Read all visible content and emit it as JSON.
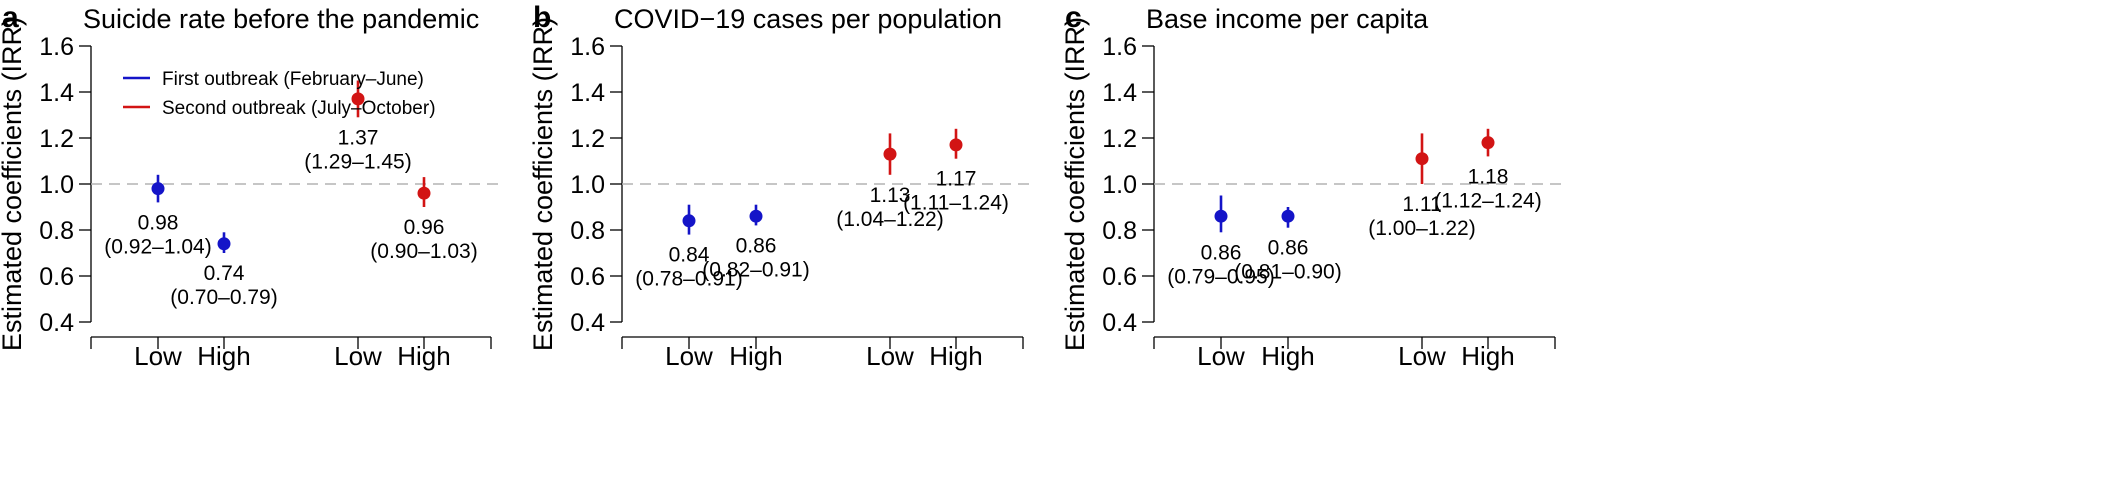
{
  "colors": {
    "first": "#1414c8",
    "second": "#d21414",
    "reference": "#b4b4b4",
    "axis": "#000000"
  },
  "legend": {
    "first": "First outbreak (February–June)",
    "second": "Second outbreak (July–October)"
  },
  "chart_data": [
    {
      "type": "scatter",
      "letter": "a",
      "title": "Suicide rate before the pandemic",
      "ylabel": "Estimated coefficients (IRR)",
      "ylim": [
        0.4,
        1.6
      ],
      "yticks": [
        "0.4",
        "0.6",
        "0.8",
        "1.0",
        "1.2",
        "1.4",
        "1.6"
      ],
      "reference_line": 1.0,
      "categories": [
        "Low",
        "High",
        "Low",
        "High"
      ],
      "points": [
        {
          "series": "first",
          "category": "Low",
          "value": 0.98,
          "lower": 0.92,
          "upper": 1.04,
          "value_label": "0.98",
          "ci_label": "(0.92–1.04)"
        },
        {
          "series": "first",
          "category": "High",
          "value": 0.74,
          "lower": 0.7,
          "upper": 0.79,
          "value_label": "0.74",
          "ci_label": "(0.70–0.79)"
        },
        {
          "series": "second",
          "category": "Low",
          "value": 1.37,
          "lower": 1.29,
          "upper": 1.45,
          "value_label": "1.37",
          "ci_label": "(1.29–1.45)"
        },
        {
          "series": "second",
          "category": "High",
          "value": 0.96,
          "lower": 0.9,
          "upper": 1.03,
          "value_label": "0.96",
          "ci_label": "(0.90–1.03)"
        }
      ]
    },
    {
      "type": "scatter",
      "letter": "b",
      "title": "COVID−19 cases per population",
      "ylabel": "Estimated coefficients (IRR)",
      "ylim": [
        0.4,
        1.6
      ],
      "yticks": [
        "0.4",
        "0.6",
        "0.8",
        "1.0",
        "1.2",
        "1.4",
        "1.6"
      ],
      "reference_line": 1.0,
      "categories": [
        "Low",
        "High",
        "Low",
        "High"
      ],
      "points": [
        {
          "series": "first",
          "category": "Low",
          "value": 0.84,
          "lower": 0.78,
          "upper": 0.91,
          "value_label": "0.84",
          "ci_label": "(0.78–0.91)"
        },
        {
          "series": "first",
          "category": "High",
          "value": 0.86,
          "lower": 0.82,
          "upper": 0.91,
          "value_label": "0.86",
          "ci_label": "(0.82–0.91)"
        },
        {
          "series": "second",
          "category": "Low",
          "value": 1.13,
          "lower": 1.04,
          "upper": 1.22,
          "value_label": "1.13",
          "ci_label": "(1.04–1.22)"
        },
        {
          "series": "second",
          "category": "High",
          "value": 1.17,
          "lower": 1.11,
          "upper": 1.24,
          "value_label": "1.17",
          "ci_label": "(1.11–1.24)"
        }
      ]
    },
    {
      "type": "scatter",
      "letter": "c",
      "title": "Base income per capita",
      "ylabel": "Estimated coefficients (IRR)",
      "ylim": [
        0.4,
        1.6
      ],
      "yticks": [
        "0.4",
        "0.6",
        "0.8",
        "1.0",
        "1.2",
        "1.4",
        "1.6"
      ],
      "reference_line": 1.0,
      "categories": [
        "Low",
        "High",
        "Low",
        "High"
      ],
      "points": [
        {
          "series": "first",
          "category": "Low",
          "value": 0.86,
          "lower": 0.79,
          "upper": 0.95,
          "value_label": "0.86",
          "ci_label": "(0.79–0.95)"
        },
        {
          "series": "first",
          "category": "High",
          "value": 0.86,
          "lower": 0.81,
          "upper": 0.9,
          "value_label": "0.86",
          "ci_label": "(0.81–0.90)"
        },
        {
          "series": "second",
          "category": "Low",
          "value": 1.11,
          "lower": 1.0,
          "upper": 1.22,
          "value_label": "1.11",
          "ci_label": "(1.00–1.22)"
        },
        {
          "series": "second",
          "category": "High",
          "value": 1.18,
          "lower": 1.12,
          "upper": 1.24,
          "value_label": "1.18",
          "ci_label": "(1.12–1.24)"
        }
      ]
    }
  ]
}
